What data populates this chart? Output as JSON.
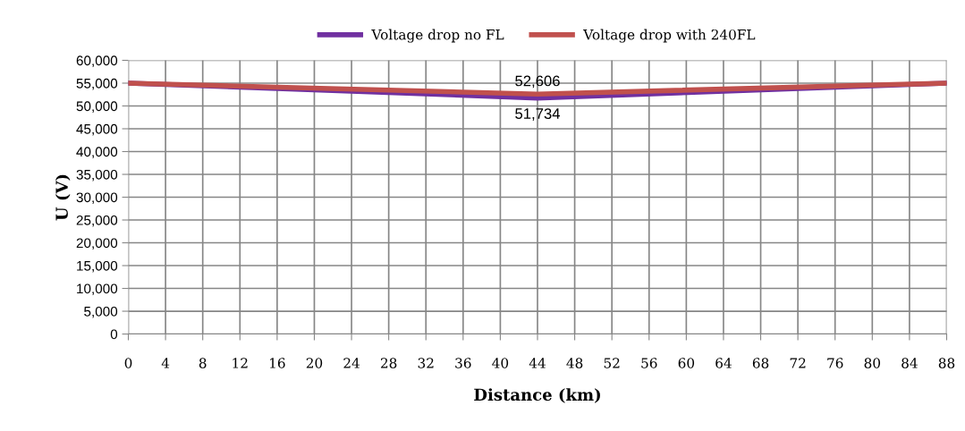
{
  "chart_data": {
    "type": "line",
    "xlabel": "Distance (km)",
    "ylabel": "U (V)",
    "x": [
      0,
      44,
      88
    ],
    "series": [
      {
        "name": "Voltage drop no FL",
        "color": "#7030a0",
        "values": [
          55000,
          51734,
          55000
        ]
      },
      {
        "name": "Voltage drop with 240FL",
        "color": "#c0504d",
        "values": [
          55000,
          52606,
          55000
        ]
      }
    ],
    "annotations": [
      {
        "text": "52,606",
        "x": 44,
        "y": 52606
      },
      {
        "text": "51,734",
        "x": 44,
        "y": 51734
      }
    ],
    "xlim": [
      0,
      88
    ],
    "xticks": [
      0,
      4,
      8,
      12,
      16,
      20,
      24,
      28,
      32,
      36,
      40,
      44,
      48,
      52,
      56,
      60,
      64,
      68,
      72,
      76,
      80,
      84,
      88
    ],
    "ylim": [
      0,
      60000
    ],
    "yticks": [
      {
        "value": 0,
        "label": "0"
      },
      {
        "value": 5000,
        "label": "5,000"
      },
      {
        "value": 10000,
        "label": "10,000"
      },
      {
        "value": 15000,
        "label": "15,000"
      },
      {
        "value": 20000,
        "label": "20,000"
      },
      {
        "value": 25000,
        "label": "25,000"
      },
      {
        "value": 30000,
        "label": "30,000"
      },
      {
        "value": 35000,
        "label": "35,000"
      },
      {
        "value": 40000,
        "label": "40,000"
      },
      {
        "value": 45000,
        "label": "45,000"
      },
      {
        "value": 50000,
        "label": "50,000"
      },
      {
        "value": 55000,
        "label": "55,000"
      },
      {
        "value": 60000,
        "label": "60,000"
      }
    ],
    "grid": true,
    "legend": "top",
    "marker": "none",
    "line_style": "solid"
  }
}
